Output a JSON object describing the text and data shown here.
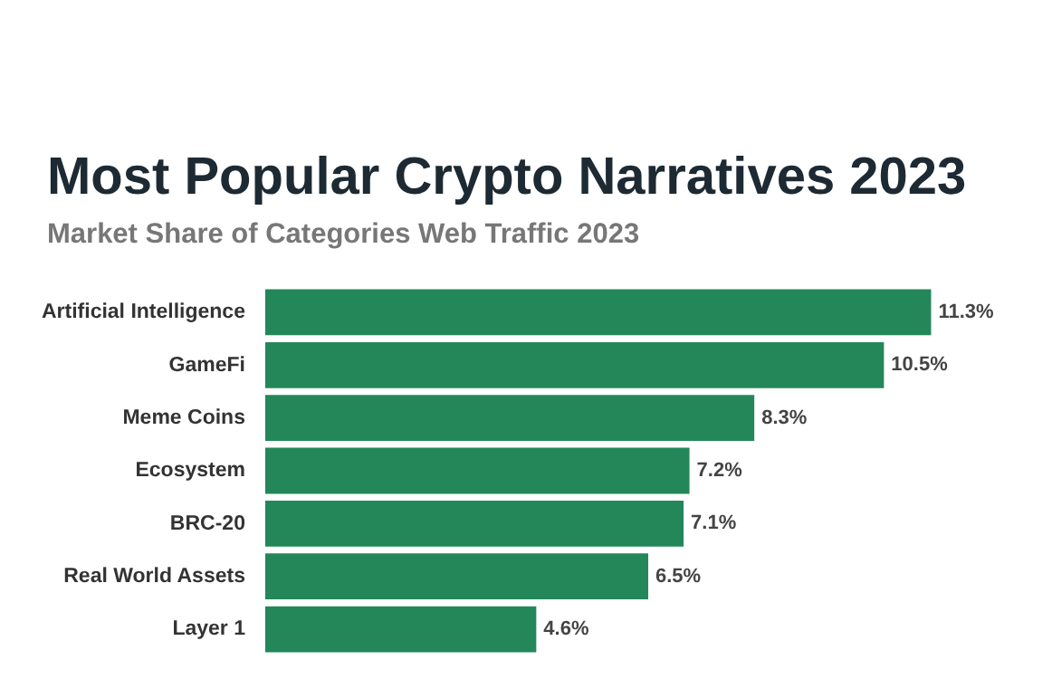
{
  "chart_data": {
    "type": "bar",
    "orientation": "horizontal",
    "title": "Most Popular Crypto Narratives 2023",
    "subtitle": "Market Share of Categories Web Traffic 2023",
    "categories": [
      "Artificial Intelligence",
      "GameFi",
      "Meme Coins",
      "Ecosystem",
      "BRC-20",
      "Real World Assets",
      "Layer 1"
    ],
    "values": [
      11.3,
      10.5,
      8.3,
      7.2,
      7.1,
      6.5,
      4.6
    ],
    "value_labels": [
      "11.3%",
      "10.5%",
      "8.3%",
      "7.2%",
      "7.1%",
      "6.5%",
      "4.6%"
    ],
    "color": "#23875a",
    "legend": false,
    "tick_labels": "y"
  }
}
